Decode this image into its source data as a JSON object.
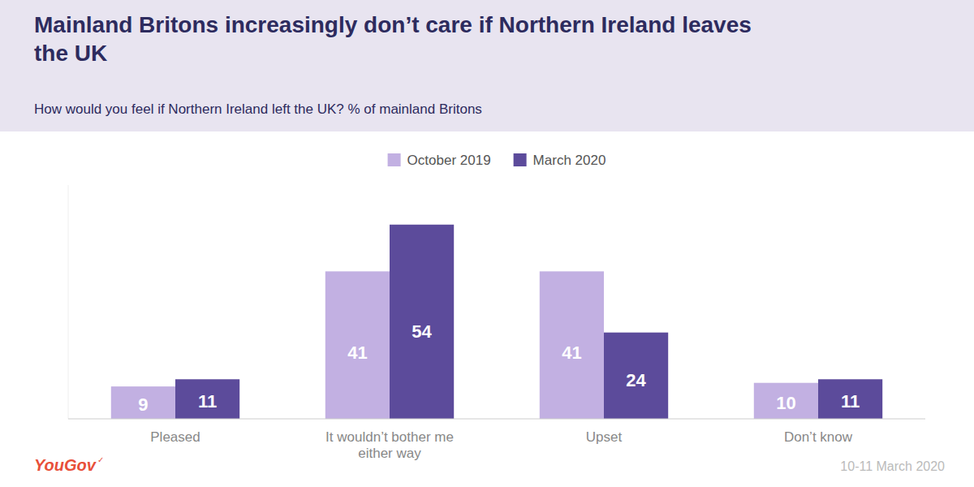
{
  "chart_data": {
    "type": "bar",
    "title": "Mainland Britons increasingly don’t care if Northern Ireland leaves\nthe UK",
    "subtitle": "How would you feel if Northern Ireland left the UK? % of mainland Britons",
    "categories": [
      "Pleased",
      "It wouldn’t bother me\neither way",
      "Upset",
      "Don’t know"
    ],
    "series": [
      {
        "name": "October 2019",
        "color": "#c2b0e2",
        "values": [
          9,
          41,
          41,
          10
        ]
      },
      {
        "name": "March 2020",
        "color": "#5c4b9b",
        "values": [
          11,
          54,
          24,
          11
        ]
      }
    ],
    "ylim": [
      0,
      65
    ],
    "data_labels": true,
    "tick_labels": "x",
    "grid": false,
    "legend": "top",
    "annotations": [
      "YouGov",
      "✓",
      "10-11 March 2020"
    ]
  }
}
